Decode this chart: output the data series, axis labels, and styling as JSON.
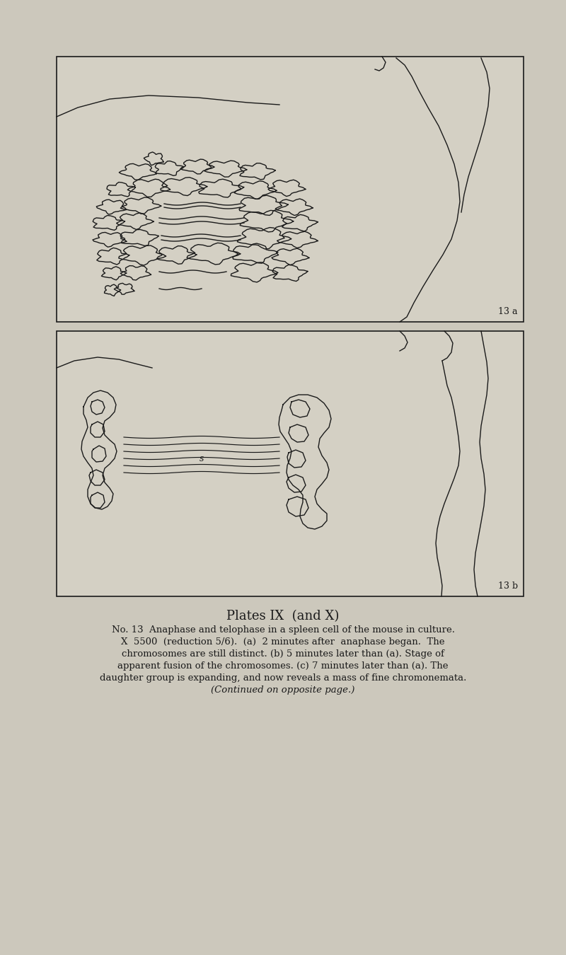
{
  "bg_color": "#ccc8bc",
  "panel_bg": "#d4d0c4",
  "line_color": "#1a1a1a",
  "title": "Plates IX  (and X)",
  "caption_lines": [
    "No. 13  Anaphase and telophase in a spleen cell of the mouse in culture.",
    "X  5500  (reduction 5/6).  (a)  2 minutes after  anaphase began.  The",
    "chromosomes are still distinct. (b) 5 minutes later than (a). Stage of",
    "apparent fusion of the chromosomes. (c) 7 minutes later than (a). The",
    "daughter group is expanding, and now reveals a mass of fine chromonemata.",
    "(Continued on opposite page.)"
  ],
  "label_a": "13 a",
  "label_b": "13 b",
  "figsize": [
    8.0,
    13.5
  ],
  "dpi": 100
}
